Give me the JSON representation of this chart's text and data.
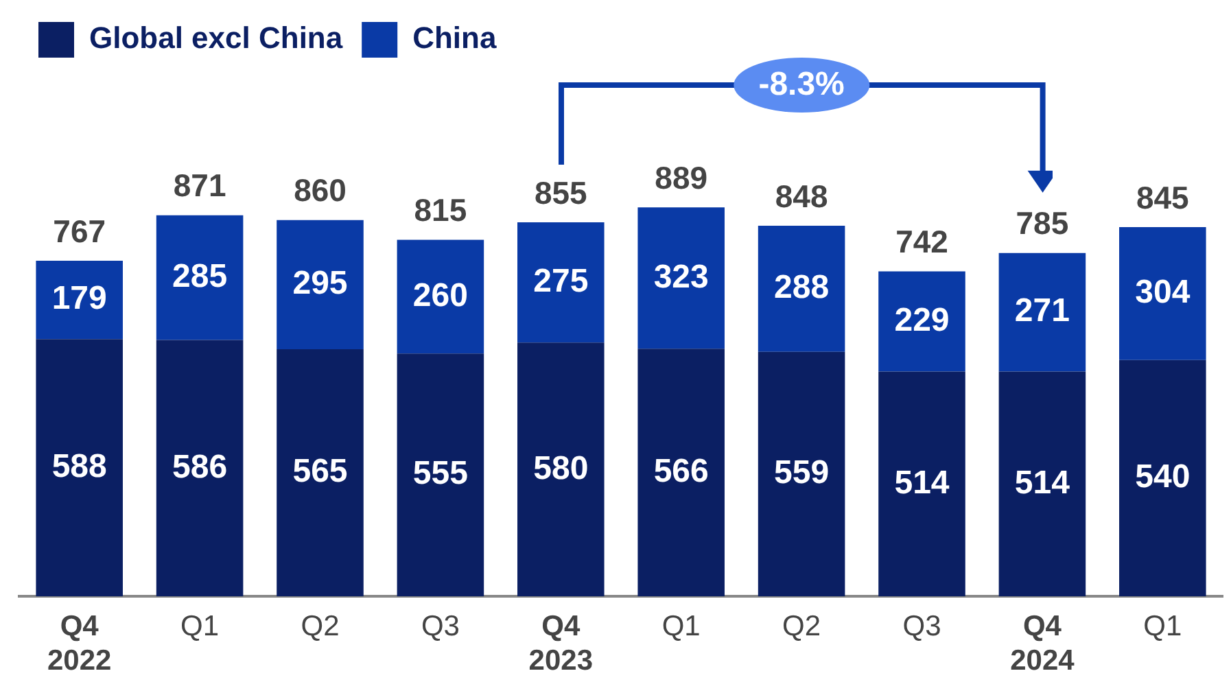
{
  "chart_data": {
    "type": "bar",
    "stacked": true,
    "legend": "top left",
    "data_labels": true,
    "grid": false,
    "categories": [
      "Q4 2022",
      "Q1",
      "Q2",
      "Q3",
      "Q4 2023",
      "Q1",
      "Q2",
      "Q3",
      "Q4 2024",
      "Q1"
    ],
    "series": [
      {
        "name": "Global excl China",
        "color": "#0b1f63",
        "values": [
          588,
          586,
          565,
          555,
          580,
          566,
          559,
          514,
          514,
          540
        ]
      },
      {
        "name": "China",
        "color": "#0a3aa6",
        "values": [
          179,
          285,
          295,
          260,
          275,
          323,
          288,
          229,
          271,
          304
        ]
      }
    ],
    "totals": [
      "767",
      "871",
      "860",
      "815",
      "855",
      "889",
      "848",
      "742",
      "785",
      "845"
    ],
    "annotations": [
      "-8.3%"
    ]
  }
}
